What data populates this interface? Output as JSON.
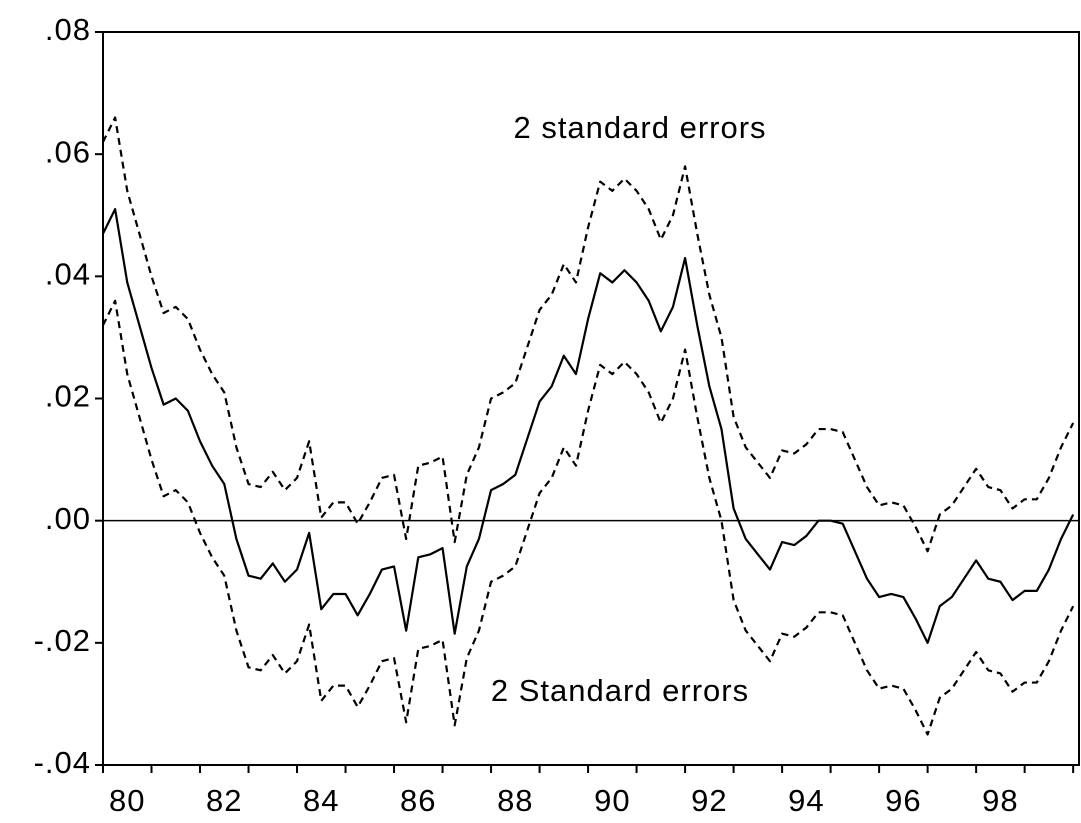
{
  "chart_data": {
    "type": "line",
    "annotations": [
      "2 standard errors",
      "2 Standard errors"
    ],
    "x": [
      1980,
      1980.25,
      1980.5,
      1980.75,
      1981,
      1981.25,
      1981.5,
      1981.75,
      1982,
      1982.25,
      1982.5,
      1982.75,
      1983,
      1983.25,
      1983.5,
      1983.75,
      1984,
      1984.25,
      1984.5,
      1984.75,
      1985,
      1985.25,
      1985.5,
      1985.75,
      1986,
      1986.25,
      1986.5,
      1986.75,
      1987,
      1987.25,
      1987.5,
      1987.75,
      1988,
      1988.25,
      1988.5,
      1988.75,
      1989,
      1989.25,
      1989.5,
      1989.75,
      1990,
      1990.25,
      1990.5,
      1990.75,
      1991,
      1991.25,
      1991.5,
      1991.75,
      1992,
      1992.25,
      1992.5,
      1992.75,
      1993,
      1993.25,
      1993.5,
      1993.75,
      1994,
      1994.25,
      1994.5,
      1994.75,
      1995,
      1995.25,
      1995.5,
      1995.75,
      1996,
      1996.25,
      1996.5,
      1996.75,
      1997,
      1997.25,
      1997.5,
      1997.75,
      1998,
      1998.25,
      1998.5,
      1998.75,
      1999,
      1999.25,
      1999.5,
      1999.75,
      2000
    ],
    "series": [
      {
        "color": "#000000",
        "dashed": false,
        "values": [
          0.047,
          0.051,
          0.039,
          0.032,
          0.025,
          0.019,
          0.02,
          0.018,
          0.013,
          0.009,
          0.006,
          -0.003,
          -0.009,
          -0.0095,
          -0.007,
          -0.01,
          -0.008,
          -0.002,
          -0.0145,
          -0.012,
          -0.012,
          -0.0155,
          -0.012,
          -0.008,
          -0.0075,
          -0.018,
          -0.006,
          -0.0055,
          -0.0045,
          -0.0185,
          -0.0075,
          -0.003,
          0.005,
          0.006,
          0.0075,
          0.0135,
          0.0195,
          0.022,
          0.027,
          0.024,
          0.033,
          0.0405,
          0.039,
          0.041,
          0.039,
          0.036,
          0.031,
          0.035,
          0.043,
          0.032,
          0.022,
          0.015,
          0.002,
          -0.003,
          -0.0055,
          -0.008,
          -0.0035,
          -0.004,
          -0.0025,
          0.0,
          0.0,
          -0.0005,
          -0.005,
          -0.0095,
          -0.0125,
          -0.012,
          -0.0125,
          -0.016,
          -0.02,
          -0.014,
          -0.0125,
          -0.0095,
          -0.0065,
          -0.0095,
          -0.01,
          -0.013,
          -0.0115,
          -0.0115,
          -0.008,
          -0.003,
          0.001
        ]
      },
      {
        "color": "#000000",
        "dashed": true,
        "values": [
          0.062,
          0.066,
          0.054,
          0.047,
          0.04,
          0.034,
          0.035,
          0.033,
          0.028,
          0.024,
          0.021,
          0.012,
          0.006,
          0.0055,
          0.008,
          0.005,
          0.007,
          0.013,
          0.0005,
          0.003,
          0.003,
          -0.0005,
          0.003,
          0.007,
          0.0075,
          -0.003,
          0.009,
          0.0095,
          0.0105,
          -0.0035,
          0.0075,
          0.012,
          0.02,
          0.021,
          0.0225,
          0.0285,
          0.0345,
          0.037,
          0.042,
          0.039,
          0.048,
          0.0555,
          0.054,
          0.056,
          0.054,
          0.051,
          0.046,
          0.05,
          0.058,
          0.047,
          0.037,
          0.03,
          0.017,
          0.012,
          0.0095,
          0.007,
          0.0115,
          0.011,
          0.0125,
          0.015,
          0.015,
          0.0145,
          0.01,
          0.0055,
          0.0025,
          0.003,
          0.0025,
          -0.001,
          -0.005,
          0.001,
          0.0025,
          0.0055,
          0.0085,
          0.0055,
          0.005,
          0.002,
          0.0035,
          0.0035,
          0.007,
          0.012,
          0.016
        ]
      },
      {
        "color": "#000000",
        "dashed": true,
        "values": [
          0.032,
          0.036,
          0.024,
          0.017,
          0.01,
          0.004,
          0.005,
          0.003,
          -0.002,
          -0.006,
          -0.009,
          -0.018,
          -0.024,
          -0.0245,
          -0.022,
          -0.025,
          -0.023,
          -0.017,
          -0.0295,
          -0.027,
          -0.027,
          -0.0305,
          -0.027,
          -0.023,
          -0.0225,
          -0.033,
          -0.021,
          -0.0205,
          -0.0195,
          -0.0335,
          -0.0225,
          -0.018,
          -0.01,
          -0.009,
          -0.0075,
          -0.0015,
          0.0045,
          0.007,
          0.012,
          0.009,
          0.018,
          0.0255,
          0.024,
          0.026,
          0.024,
          0.021,
          0.016,
          0.02,
          0.028,
          0.017,
          0.007,
          0.0,
          -0.013,
          -0.018,
          -0.0205,
          -0.023,
          -0.0185,
          -0.019,
          -0.0175,
          -0.015,
          -0.015,
          -0.0155,
          -0.02,
          -0.0245,
          -0.0275,
          -0.027,
          -0.0275,
          -0.031,
          -0.035,
          -0.029,
          -0.0275,
          -0.0245,
          -0.0215,
          -0.0245,
          -0.025,
          -0.028,
          -0.0265,
          -0.0265,
          -0.023,
          -0.018,
          -0.014
        ]
      }
    ],
    "xlim": [
      1980,
      2000.1
    ],
    "xticks": [
      {
        "value": 1980.5,
        "label": "80"
      },
      {
        "value": 1982.5,
        "label": "82"
      },
      {
        "value": 1984.5,
        "label": "84"
      },
      {
        "value": 1986.5,
        "label": "86"
      },
      {
        "value": 1988.5,
        "label": "88"
      },
      {
        "value": 1990.5,
        "label": "90"
      },
      {
        "value": 1992.5,
        "label": "92"
      },
      {
        "value": 1994.5,
        "label": "94"
      },
      {
        "value": 1996.5,
        "label": "96"
      },
      {
        "value": 1998.5,
        "label": "98"
      }
    ],
    "xminorticks": [
      1980,
      1981,
      1982,
      1983,
      1984,
      1985,
      1986,
      1987,
      1988,
      1989,
      1990,
      1991,
      1992,
      1993,
      1994,
      1995,
      1996,
      1997,
      1998,
      1999,
      2000
    ],
    "ylim": [
      -0.04,
      0.08
    ],
    "yticks": [
      {
        "value": -0.04,
        "label": "-.04"
      },
      {
        "value": -0.02,
        "label": "-.02"
      },
      {
        "value": 0,
        "label": ".00"
      },
      {
        "value": 0.02,
        "label": ".02"
      },
      {
        "value": 0.04,
        "label": ".04"
      },
      {
        "value": 0.06,
        "label": ".06"
      },
      {
        "value": 0.08,
        "label": ".08"
      }
    ],
    "hline": 0,
    "grid": false
  }
}
